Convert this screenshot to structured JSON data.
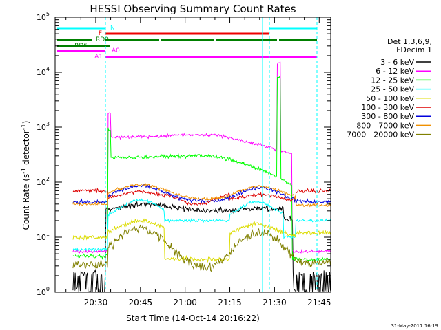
{
  "chart_data": {
    "type": "line",
    "title": "HESSI Observing Summary Count Rates",
    "xlabel": "Start Time (14-Oct-14 20:16:22)",
    "ylabel_main": "Count Rate (s",
    "ylabel_sup": "-1",
    "ylabel_mid": " detector",
    "ylabel_sup2": "-1",
    "ylabel_end": ")",
    "yscale": "log",
    "ylim": [
      1,
      100000
    ],
    "x_ticks": [
      "20:30",
      "20:45",
      "21:00",
      "21:15",
      "21:30",
      "21:45"
    ],
    "y_ticks": [
      {
        "base": "10",
        "exp": "0"
      },
      {
        "base": "10",
        "exp": "1"
      },
      {
        "base": "10",
        "exp": "2"
      },
      {
        "base": "10",
        "exp": "3"
      },
      {
        "base": "10",
        "exp": "4"
      },
      {
        "base": "10",
        "exp": "5"
      }
    ],
    "legend_header": [
      "Det 1,3,6,9,",
      "FDecim 1"
    ],
    "series": [
      {
        "name": "3 - 6 keV",
        "color": "#000000"
      },
      {
        "name": "6 - 12 keV",
        "color": "#ff00ff"
      },
      {
        "name": "12 - 25 keV",
        "color": "#00ff00"
      },
      {
        "name": "25 - 50 keV",
        "color": "#00ffff"
      },
      {
        "name": "50 - 100 keV",
        "color": "#dcdc00"
      },
      {
        "name": "100 - 300 keV",
        "color": "#dd0000"
      },
      {
        "name": "300 - 800 keV",
        "color": "#0000dd"
      },
      {
        "name": "800 - 7000 keV",
        "color": "#f09000"
      },
      {
        "name": "7000 - 20000 keV",
        "color": "#808000"
      }
    ],
    "flags": [
      {
        "label": "N",
        "color": "#00ffff"
      },
      {
        "label": "F",
        "color": "#ee0000"
      },
      {
        "label": "RD0",
        "color": "#008000"
      },
      {
        "label": "RD6",
        "color": "#008000"
      },
      {
        "label": "A0",
        "color": "#ff00ff"
      },
      {
        "label": "A1",
        "color": "#ff00ff"
      }
    ],
    "timestamp": "31-May-2017 16:19"
  }
}
